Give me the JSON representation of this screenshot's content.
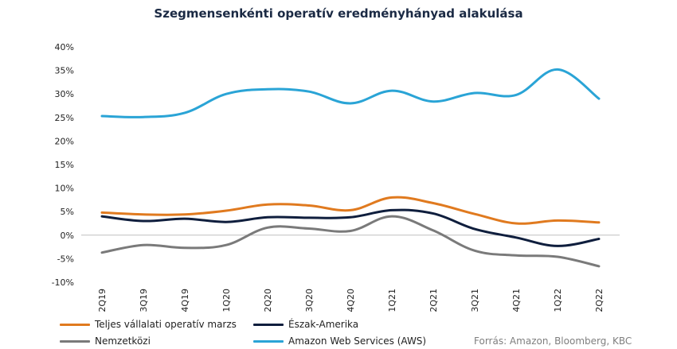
{
  "chart_data": {
    "type": "line",
    "title": "Szegmensenkénti operatív eredményhányad alakulása",
    "xlabel": "",
    "ylabel": "",
    "categories": [
      "2Q19",
      "3Q19",
      "4Q19",
      "1Q20",
      "2Q20",
      "3Q20",
      "4Q20",
      "1Q21",
      "2Q21",
      "3Q21",
      "4Q21",
      "1Q22",
      "2Q22"
    ],
    "y_ticks": [
      "40%",
      "35%",
      "30%",
      "25%",
      "20%",
      "15%",
      "10%",
      "5%",
      "0%",
      "-5%",
      "-10%"
    ],
    "ylim": [
      -10,
      40
    ],
    "grid": false,
    "legend_position": "bottom",
    "series": [
      {
        "name": "Teljes vállalati operatív marzs",
        "color": "#e07a1f",
        "values": [
          4.8,
          4.4,
          4.4,
          5.2,
          6.5,
          6.3,
          5.3,
          8.0,
          6.8,
          4.5,
          2.5,
          3.1,
          2.7
        ]
      },
      {
        "name": "Észak-Amerika",
        "color": "#0f1e3d",
        "values": [
          4.0,
          3.0,
          3.5,
          2.8,
          3.8,
          3.7,
          3.8,
          5.3,
          4.6,
          1.3,
          -0.5,
          -2.3,
          -0.8
        ]
      },
      {
        "name": "Nemzetközi",
        "color": "#7a7a7a",
        "values": [
          -3.7,
          -2.1,
          -2.7,
          -2.1,
          1.6,
          1.4,
          0.9,
          4.0,
          1.0,
          -3.3,
          -4.3,
          -4.6,
          -6.6
        ]
      },
      {
        "name": "Amazon Web Services (AWS)",
        "color": "#2aa4d6",
        "values": [
          25.3,
          25.1,
          26.0,
          30.0,
          31.0,
          30.5,
          28.0,
          30.7,
          28.4,
          30.2,
          29.8,
          35.2,
          29.0
        ]
      }
    ]
  },
  "source_note": "Forrás: Amazon, Bloomberg, KBC"
}
